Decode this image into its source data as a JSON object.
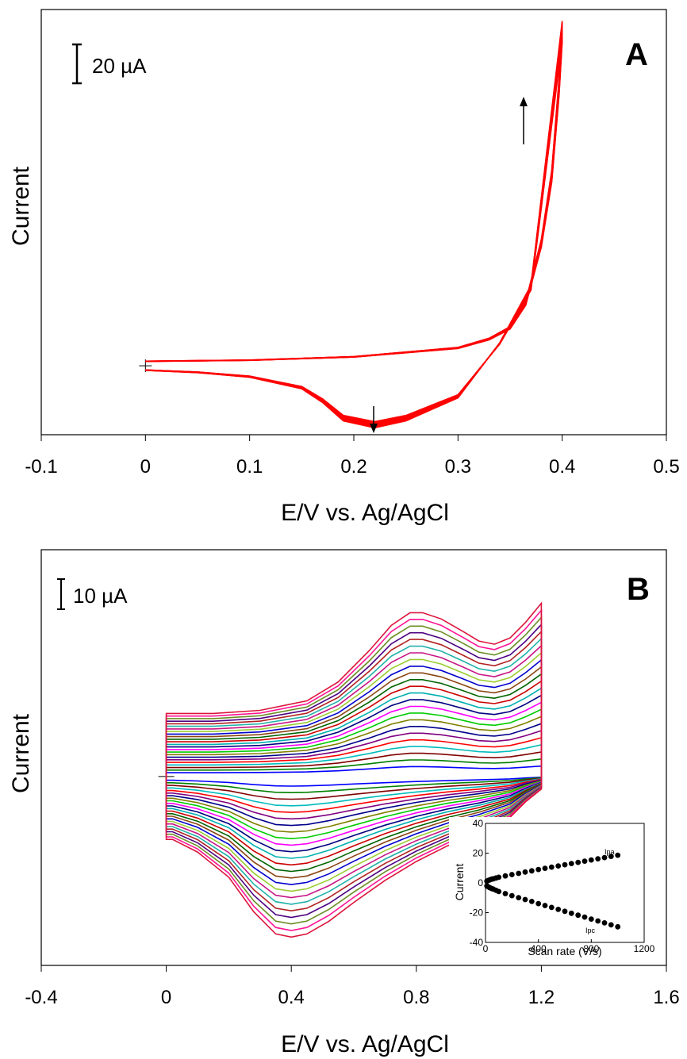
{
  "chart_data": [
    {
      "type": "line",
      "panel": "A",
      "xlabel": "E/V vs. Ag/AgCl",
      "ylabel": "Current",
      "xlim": [
        -0.1,
        0.5
      ],
      "xticks": [
        "-0.1",
        "0",
        "0.1",
        "0.2",
        "0.3",
        "0.4",
        "0.5"
      ],
      "scale_bar": "20 µA",
      "scale_bar_value_uA": 20,
      "ylim_uA": [
        -30,
        155
      ],
      "color": "#ff0000",
      "cycles": 12,
      "trend": "peak current grows with successive cycles (arrows)",
      "anodic": {
        "x": [
          0.0,
          0.1,
          0.2,
          0.3,
          0.33,
          0.35,
          0.365,
          0.38,
          0.39,
          0.397,
          0.4
        ],
        "y": [
          2,
          2.5,
          4,
          8,
          12,
          17,
          28,
          55,
          85,
          125,
          150
        ]
      },
      "cathodic": {
        "x": [
          0.4,
          0.37,
          0.34,
          0.3,
          0.28,
          0.25,
          0.22,
          0.19,
          0.17,
          0.15,
          0.1,
          0.05,
          0.0
        ],
        "y": [
          150,
          35,
          10,
          -14,
          -18,
          -24,
          -27,
          -24,
          -16,
          -10,
          -5,
          -3,
          -2
        ]
      }
    },
    {
      "type": "line",
      "panel": "B",
      "xlabel": "E/V vs. Ag/AgCl",
      "ylabel": "Current",
      "xlim": [
        -0.4,
        1.6
      ],
      "xticks": [
        "-0.4",
        "0",
        "0.4",
        "0.8",
        "1.2",
        "1.6"
      ],
      "scale_bar": "10 µA",
      "scale_bar_value_uA": 10,
      "ylim_uA": [
        -60,
        72
      ],
      "n_curves": 24,
      "colors": [
        "#0000ff",
        "#008000",
        "#800000",
        "#00bcbc",
        "#ff0000",
        "#800080",
        "#00008b",
        "#808000",
        "#00cc00",
        "#ff00ff",
        "#000080",
        "#00b0b0",
        "#cc0000",
        "#006400",
        "#8b4513",
        "#0000cd",
        "#9acd32",
        "#c71585",
        "#20b2aa",
        "#b22222",
        "#4b0082",
        "#6b8e23",
        "#ff1493",
        "#dc143c"
      ],
      "scale_factor_range": [
        0.06,
        1.0
      ],
      "anodic_template": {
        "x": [
          0.0,
          0.15,
          0.3,
          0.45,
          0.55,
          0.65,
          0.72,
          0.78,
          0.82,
          0.88,
          0.95,
          1.0,
          1.05,
          1.1,
          1.15,
          1.2
        ],
        "y": [
          20,
          20,
          21,
          24,
          30,
          40,
          48,
          52,
          52,
          50,
          46,
          43,
          42,
          44,
          49,
          55
        ]
      },
      "cathodic_template": {
        "x": [
          1.2,
          1.15,
          1.1,
          1.0,
          0.9,
          0.8,
          0.7,
          0.6,
          0.52,
          0.45,
          0.4,
          0.35,
          0.28,
          0.2,
          0.1,
          0.02,
          0.0
        ],
        "y": [
          -4,
          -8,
          -13,
          -18,
          -22,
          -27,
          -33,
          -40,
          -46,
          -50,
          -51,
          -50,
          -43,
          -32,
          -24,
          -20,
          -20
        ]
      },
      "inset": {
        "type": "scatter",
        "xlabel": "Scan rate (V/s)",
        "ylabel": "Current",
        "xlim": [
          0,
          1200
        ],
        "ylim": [
          -40,
          40
        ],
        "xticks": [
          "0",
          "400",
          "800",
          "1200"
        ],
        "yticks": [
          "-40",
          "-20",
          "0",
          "20",
          "40"
        ],
        "series": [
          {
            "name": "Ipa",
            "x": [
              10,
              20,
              30,
              40,
              50,
              60,
              80,
              100,
              150,
              200,
              250,
              300,
              350,
              400,
              450,
              500,
              550,
              600,
              650,
              700,
              750,
              800,
              850,
              900,
              950,
              1000
            ],
            "y": [
              1.2,
              1.6,
              2.0,
              2.3,
              2.6,
              2.8,
              3.3,
              3.8,
              4.7,
              5.6,
              6.4,
              7.3,
              8.1,
              9.0,
              9.8,
              10.6,
              11.4,
              12.2,
              13.0,
              13.8,
              14.6,
              15.4,
              16.2,
              17.0,
              17.8,
              18.6
            ]
          },
          {
            "name": "Ipc",
            "x": [
              10,
              20,
              30,
              40,
              50,
              60,
              80,
              100,
              150,
              200,
              250,
              300,
              350,
              400,
              450,
              500,
              550,
              600,
              650,
              700,
              750,
              800,
              850,
              900,
              950,
              1000
            ],
            "y": [
              -2.0,
              -2.6,
              -3.1,
              -3.5,
              -3.9,
              -4.2,
              -5.0,
              -5.8,
              -7.2,
              -8.6,
              -9.9,
              -11.2,
              -12.5,
              -13.9,
              -15.2,
              -16.5,
              -17.8,
              -19.1,
              -20.4,
              -21.7,
              -23.0,
              -24.3,
              -25.6,
              -26.9,
              -28.2,
              -29.5
            ]
          }
        ]
      }
    }
  ]
}
